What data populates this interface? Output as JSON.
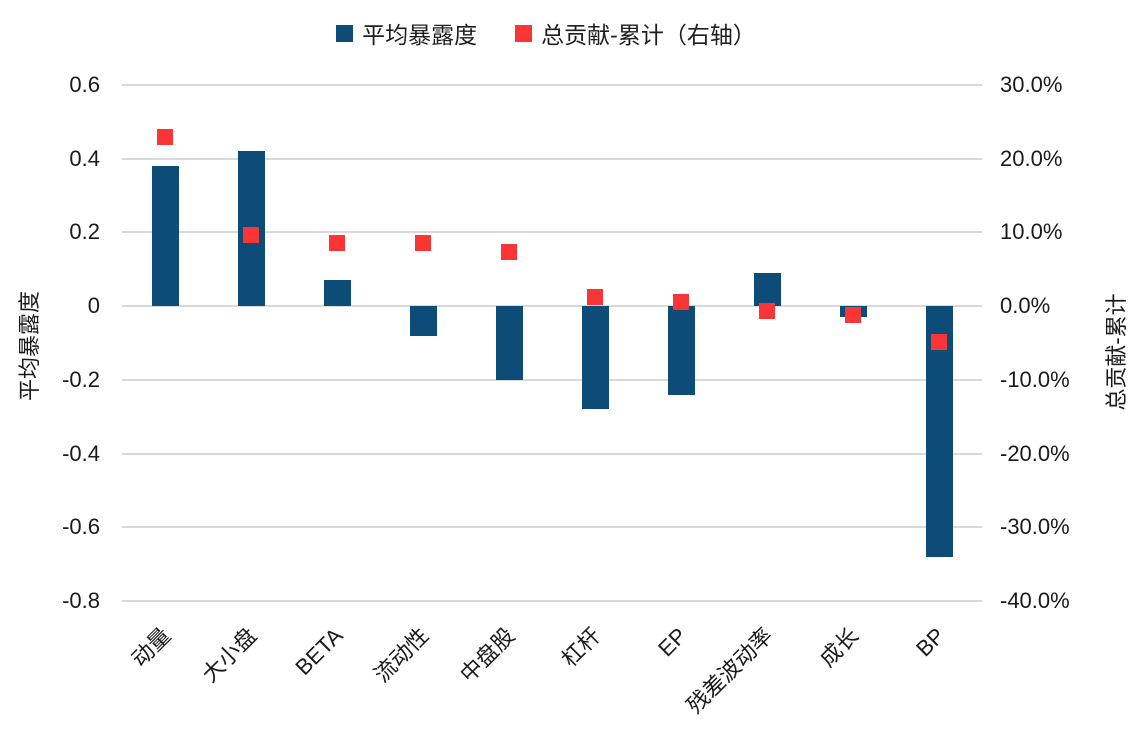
{
  "legend": {
    "items": [
      {
        "label": "平均暴露度",
        "swatch_color": "#0e4c78"
      },
      {
        "label": "总贡献-累计（右轴）",
        "swatch_color": "#fa3535"
      }
    ]
  },
  "left_axis": {
    "title": "平均暴露度",
    "tick_labels": [
      "0.6",
      "0.4",
      "0.2",
      "0",
      "-0.2",
      "-0.4",
      "-0.6",
      "-0.8"
    ],
    "tick_values": [
      0.6,
      0.4,
      0.2,
      0,
      -0.2,
      -0.4,
      -0.6,
      -0.8
    ]
  },
  "right_axis": {
    "title": "总贡献-累计",
    "tick_labels": [
      "30.0%",
      "20.0%",
      "10.0%",
      "0.0%",
      "-10.0%",
      "-20.0%",
      "-30.0%",
      "-40.0%"
    ],
    "tick_values": [
      30,
      20,
      10,
      0,
      -10,
      -20,
      -30,
      -40
    ]
  },
  "chart_data": {
    "type": "bar",
    "subtype": "combo-bar-with-square-markers-dual-axis",
    "categories": [
      "动量",
      "大小盘",
      "BETA",
      "流动性",
      "中盘股",
      "杠杆",
      "EP",
      "残差波动率",
      "成长",
      "BP"
    ],
    "series": [
      {
        "name": "平均暴露度",
        "type": "bar",
        "axis": "left",
        "color": "#0e4c78",
        "values": [
          0.38,
          0.42,
          0.07,
          -0.08,
          -0.2,
          -0.28,
          -0.24,
          0.09,
          -0.03,
          -0.68
        ]
      },
      {
        "name": "总贡献-累计（右轴）",
        "type": "scatter",
        "marker": "square",
        "axis": "right",
        "color": "#fa3535",
        "values": [
          23.0,
          9.7,
          8.5,
          8.5,
          7.4,
          1.2,
          0.6,
          -0.7,
          -1.2,
          -4.9
        ]
      }
    ],
    "title": "",
    "xlabel": "",
    "ylabel_left": "平均暴露度",
    "ylabel_right": "总贡献-累计",
    "left_ylim": [
      -0.8,
      0.6
    ],
    "right_ylim": [
      -40,
      30
    ],
    "grid": true,
    "gridline_color": "#d9d9d9",
    "legend_position": "top"
  }
}
